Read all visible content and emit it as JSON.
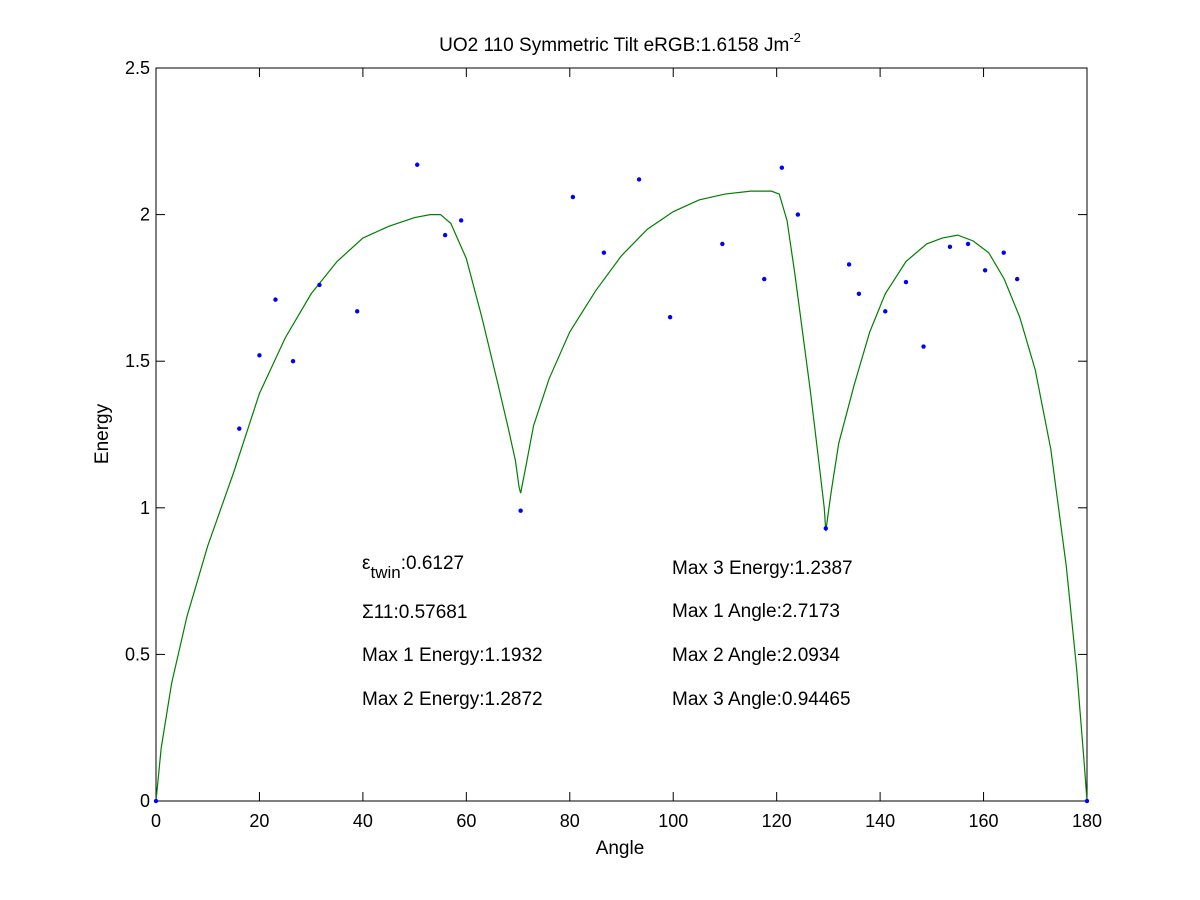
{
  "chart_data": {
    "type": "scatter",
    "title": {
      "main": "UO2 110 Symmetric Tilt   eRGB:1.6158 Jm",
      "sup": "-2"
    },
    "xlabel": "Angle",
    "ylabel": "Energy",
    "xlim": [
      0,
      180
    ],
    "ylim": [
      0,
      2.5
    ],
    "xticks": [
      0,
      20,
      40,
      60,
      80,
      100,
      120,
      140,
      160,
      180
    ],
    "xtick_labels": [
      "0",
      "20",
      "40",
      "60",
      "80",
      "100",
      "120",
      "140",
      "160",
      "180"
    ],
    "yticks": [
      0,
      0.5,
      1,
      1.5,
      2,
      2.5
    ],
    "ytick_labels": [
      "0",
      "0.5",
      "1",
      "1.5",
      "2",
      "2.5"
    ],
    "grid": false,
    "colors": {
      "points": "#0000ff",
      "fit_line": "#007f00",
      "axes": "#000000"
    },
    "series": [
      {
        "kind": "points",
        "x": [
          0,
          16.1,
          20.0,
          23.1,
          26.5,
          31.6,
          38.9,
          50.5,
          55.9,
          59.0,
          70.5,
          80.6,
          86.6,
          93.4,
          99.4,
          109.5,
          117.6,
          121.0,
          124.1,
          129.5,
          134.0,
          135.9,
          141.0,
          145.0,
          148.4,
          153.5,
          157.0,
          160.3,
          163.9,
          166.5,
          180.0
        ],
        "y": [
          0,
          1.27,
          1.52,
          1.71,
          1.5,
          1.76,
          1.67,
          2.17,
          1.93,
          1.98,
          0.99,
          2.06,
          1.87,
          2.12,
          1.65,
          1.9,
          1.78,
          2.16,
          2.0,
          0.93,
          1.83,
          1.73,
          1.67,
          1.77,
          1.55,
          1.89,
          1.9,
          1.81,
          1.87,
          1.78,
          0
        ]
      },
      {
        "kind": "line",
        "x": [
          0,
          1,
          3,
          6,
          10,
          15,
          20,
          25,
          30,
          35,
          40,
          45,
          50,
          53,
          55,
          57,
          60,
          63,
          66,
          68,
          69.5,
          70.2,
          70.5,
          71.5,
          73,
          76,
          80,
          85,
          90,
          95,
          100,
          105,
          110,
          115,
          117.5,
          119,
          120.5,
          122,
          123.5,
          125,
          126.5,
          128,
          129.2,
          129.5,
          130.5,
          132,
          135,
          138,
          141,
          145,
          149,
          152,
          155,
          158,
          161,
          164,
          167,
          170,
          173,
          176,
          178,
          179.5,
          180
        ],
        "y": [
          0,
          0.18,
          0.4,
          0.63,
          0.87,
          1.12,
          1.39,
          1.58,
          1.73,
          1.84,
          1.92,
          1.96,
          1.99,
          2.0,
          2.0,
          1.97,
          1.85,
          1.65,
          1.43,
          1.28,
          1.16,
          1.07,
          1.05,
          1.14,
          1.28,
          1.44,
          1.6,
          1.74,
          1.86,
          1.95,
          2.01,
          2.05,
          2.07,
          2.08,
          2.08,
          2.08,
          2.07,
          1.98,
          1.8,
          1.6,
          1.4,
          1.18,
          1.0,
          0.92,
          1.05,
          1.22,
          1.42,
          1.6,
          1.73,
          1.84,
          1.9,
          1.92,
          1.93,
          1.91,
          1.87,
          1.78,
          1.65,
          1.47,
          1.2,
          0.8,
          0.45,
          0.12,
          0
        ]
      }
    ],
    "annotations": [
      {
        "id": "eps-twin",
        "prefix": "ε",
        "sub": "twin",
        "text": ":0.6127"
      },
      {
        "id": "sigma-11",
        "text": "Σ11:0.57681"
      },
      {
        "id": "max1-energy",
        "text": "Max 1 Energy:1.1932"
      },
      {
        "id": "max2-energy",
        "text": "Max 2 Energy:1.2872"
      },
      {
        "id": "max3-energy",
        "text": "Max 3 Energy:1.2387"
      },
      {
        "id": "max1-angle",
        "text": "Max 1 Angle:2.7173"
      },
      {
        "id": "max2-angle",
        "text": "Max 2 Angle:2.0934"
      },
      {
        "id": "max3-angle",
        "text": "Max 3 Angle:0.94465"
      }
    ]
  }
}
